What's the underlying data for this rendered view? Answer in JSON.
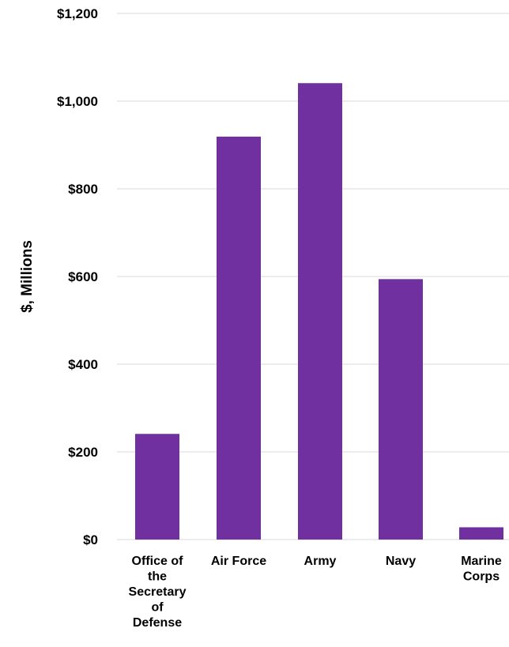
{
  "chart_data": {
    "type": "bar",
    "title": "",
    "xlabel": "",
    "ylabel": "$, Millions",
    "categories": [
      [
        "Office of",
        "the",
        "Secretary",
        "of",
        "Defense"
      ],
      [
        "Air Force"
      ],
      [
        "Army"
      ],
      [
        "Navy"
      ],
      [
        "Marine",
        "Corps"
      ]
    ],
    "values": [
      241,
      919,
      1041,
      594,
      28
    ],
    "ylim": [
      0,
      1200
    ],
    "yticks": [
      {
        "value": 0,
        "label": "$0"
      },
      {
        "value": 200,
        "label": "$200"
      },
      {
        "value": 400,
        "label": "$400"
      },
      {
        "value": 600,
        "label": "$600"
      },
      {
        "value": 800,
        "label": "$800"
      },
      {
        "value": 1000,
        "label": "$1,000"
      },
      {
        "value": 1200,
        "label": "$1,200"
      }
    ],
    "grid": true,
    "legend": "none",
    "bar_color": "#7030A0",
    "grid_color": "#D9D9D9"
  }
}
